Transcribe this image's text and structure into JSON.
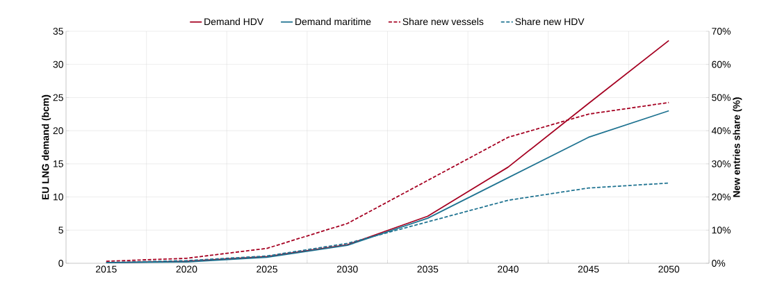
{
  "chart_data": {
    "type": "line",
    "ylabel": "EU LNG demand (bcm)",
    "y2label": "New entries share (%)",
    "categories": [
      "2015",
      "2020",
      "2025",
      "2030",
      "2035",
      "2040",
      "2045",
      "2050"
    ],
    "ylim": [
      0,
      35
    ],
    "yticks": [
      0,
      5,
      10,
      15,
      20,
      25,
      30,
      35
    ],
    "y2lim": [
      0,
      70
    ],
    "y2ticks": [
      {
        "value": 0,
        "label": "0%"
      },
      {
        "value": 10,
        "label": "10%"
      },
      {
        "value": 20,
        "label": "20%"
      },
      {
        "value": 30,
        "label": "30%"
      },
      {
        "value": 40,
        "label": "40%"
      },
      {
        "value": 50,
        "label": "50%"
      },
      {
        "value": 60,
        "label": "60%"
      },
      {
        "value": 70,
        "label": "70%"
      }
    ],
    "grid": true,
    "legend": "top",
    "marker": "none",
    "series": [
      {
        "name": "Demand HDV",
        "color": "#a50021",
        "line_style": "solid",
        "values": [
          0.1,
          0.3,
          1.0,
          2.8,
          7.1,
          14.5,
          24.1,
          33.6
        ]
      },
      {
        "name": "Demand maritime",
        "color": "#1f7391",
        "line_style": "solid",
        "values": [
          0.1,
          0.2,
          0.9,
          2.7,
          6.8,
          12.9,
          19.0,
          23.0
        ]
      },
      {
        "name": "Share new vessels",
        "color": "#a50021",
        "line_style": "dashed",
        "axis": "y2",
        "values": [
          0.6,
          1.5,
          4.5,
          12,
          25,
          38,
          45,
          48.5
        ]
      },
      {
        "name": "Share new HDV",
        "color": "#1f7391",
        "line_style": "dashed",
        "axis": "y2",
        "values": [
          0.2,
          0.8,
          2.2,
          6,
          12.5,
          19,
          22.7,
          24.2
        ]
      }
    ]
  }
}
